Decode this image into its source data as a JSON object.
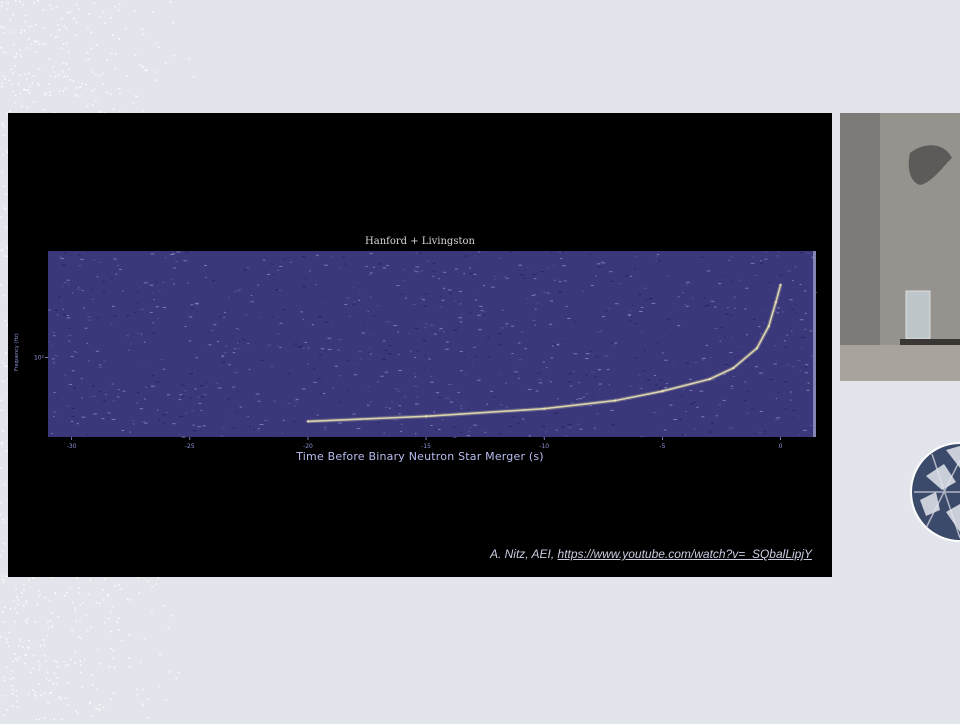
{
  "colors": {
    "page_background": "#e3e5ec",
    "slide_background": "#000000",
    "spectrogram_background": "#3a377a",
    "chirp": "#e8e1b0",
    "axis_text": "#8f95d8"
  },
  "chart_data": {
    "type": "heatmap",
    "title": "Hanford + Livingston",
    "xlabel": "Time Before Binary Neutron Star Merger (s)",
    "ylabel": "Frequency (Hz)",
    "xlim": [
      -31,
      1.5
    ],
    "x_ticks": [
      -30,
      -25,
      -20,
      -15,
      -10,
      -5,
      0
    ],
    "x_tick_labels": [
      "-30",
      "-25",
      "-20",
      "-15",
      "-10",
      "-5",
      "0"
    ],
    "y_scale": "log",
    "ylim": [
      30,
      500
    ],
    "y_ticks": [
      100
    ],
    "y_tick_labels": [
      "10²"
    ],
    "grid": false,
    "chirp_track": [
      {
        "t": -20,
        "f": 38
      },
      {
        "t": -15,
        "f": 41
      },
      {
        "t": -10,
        "f": 46
      },
      {
        "t": -7,
        "f": 52
      },
      {
        "t": -5,
        "f": 60
      },
      {
        "t": -3,
        "f": 72
      },
      {
        "t": -2,
        "f": 85
      },
      {
        "t": -1,
        "f": 115
      },
      {
        "t": -0.5,
        "f": 160
      },
      {
        "t": -0.2,
        "f": 230
      },
      {
        "t": 0,
        "f": 300
      }
    ]
  },
  "credit": {
    "text": "A. Nitz, AEI, ",
    "link": "https://www.youtube.com/watch?v=_SQbalLipjY"
  }
}
